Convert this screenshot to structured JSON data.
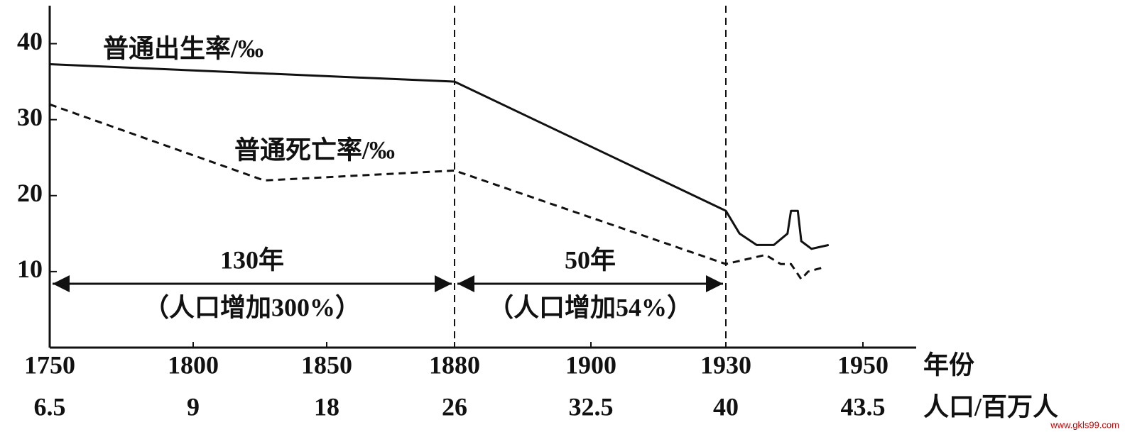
{
  "chart_data": {
    "type": "line",
    "series": [
      {
        "name": "普通出生率/‰",
        "color": "#111111",
        "dash": false,
        "x": [
          1750,
          1880,
          1930,
          1932,
          1934.5,
          1937,
          1939,
          1939.5,
          1940.5,
          1941,
          1942.5,
          1945
        ],
        "values": [
          37.3,
          35,
          18,
          15,
          13.5,
          13.5,
          15,
          18,
          18,
          14,
          13,
          13.5
        ]
      },
      {
        "name": "普通死亡率/‰",
        "color": "#111111",
        "dash": true,
        "x": [
          1750,
          1826.6,
          1880,
          1930,
          1935.8,
          1938,
          1939.5,
          1941,
          1942,
          1944
        ],
        "values": [
          32,
          22,
          23.3,
          11,
          12.2,
          11,
          11,
          9,
          10,
          10.5
        ]
      }
    ],
    "xlim": [
      1750,
      1950
    ],
    "xticks": [
      1750,
      1800,
      1850,
      1880,
      1900,
      1930,
      1950
    ],
    "xlabel": "年份",
    "population": [
      6.5,
      9,
      18,
      26,
      32.5,
      40,
      43.5
    ],
    "population_label": "人口/百万人",
    "ylim": [
      0,
      45
    ],
    "yticks": [
      10,
      20,
      30,
      40
    ],
    "vlines": [
      1880,
      1930
    ],
    "spans": [
      {
        "from": 1750,
        "to": 1880,
        "level": 8.4,
        "label": "130年",
        "note": "（人口增加300%）"
      },
      {
        "from": 1880,
        "to": 1930,
        "level": 8.4,
        "label": "50年",
        "note": "（人口增加54%）"
      }
    ],
    "watermark": "www.gkls99.com"
  }
}
